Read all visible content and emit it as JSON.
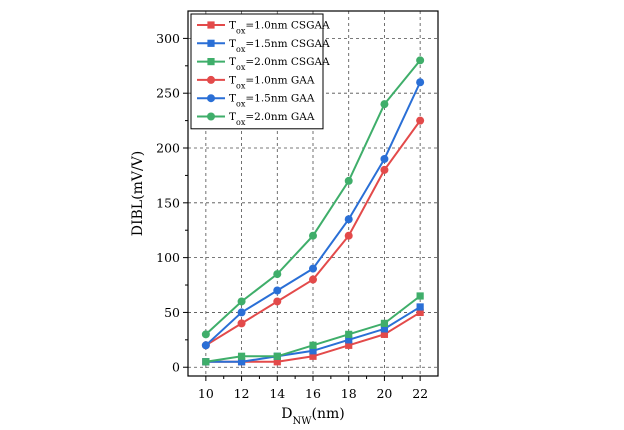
{
  "chart_data": {
    "type": "line",
    "xlabel": "D",
    "xlabel_sub": "NW",
    "xlabel_suffix": "(nm)",
    "ylabel": "DIBL(mV/V)",
    "x": [
      10,
      12,
      14,
      16,
      18,
      20,
      22
    ],
    "xlim": [
      9,
      23
    ],
    "ylim": [
      -8,
      325
    ],
    "x_ticks": [
      "10",
      "12",
      "14",
      "16",
      "18",
      "20",
      "22"
    ],
    "y_ticks": [
      "0",
      "50",
      "100",
      "150",
      "200",
      "250",
      "300"
    ],
    "grid": true,
    "legend_position": "top-left",
    "series": [
      {
        "name": "T_ox=1.0nm CSGAA",
        "legend_prefix": "T",
        "legend_sub": "ox",
        "legend_suffix": "=1.0nm CSGAA",
        "marker": "square",
        "color": "#e34a4a",
        "values": [
          5,
          5,
          5,
          10,
          20,
          30,
          50
        ]
      },
      {
        "name": "T_ox=1.5nm CSGAA",
        "legend_prefix": "T",
        "legend_sub": "ox",
        "legend_suffix": "=1.5nm CSGAA",
        "marker": "square",
        "color": "#2a6fd6",
        "values": [
          5,
          5,
          10,
          15,
          25,
          35,
          55
        ]
      },
      {
        "name": "T_ox=2.0nm CSGAA",
        "legend_prefix": "T",
        "legend_sub": "ox",
        "legend_suffix": "=2.0nm CSGAA",
        "marker": "square",
        "color": "#3fae6a",
        "values": [
          5,
          10,
          10,
          20,
          30,
          40,
          65
        ]
      },
      {
        "name": "T_ox=1.0nm GAA",
        "legend_prefix": "T",
        "legend_sub": "ox",
        "legend_suffix": "=1.0nm GAA",
        "marker": "circle",
        "color": "#e34a4a",
        "values": [
          20,
          40,
          60,
          80,
          120,
          180,
          225
        ]
      },
      {
        "name": "T_ox=1.5nm GAA",
        "legend_prefix": "T",
        "legend_sub": "ox",
        "legend_suffix": "=1.5nm GAA",
        "marker": "circle",
        "color": "#2a6fd6",
        "values": [
          20,
          50,
          70,
          90,
          135,
          190,
          260
        ]
      },
      {
        "name": "T_ox=2.0nm GAA",
        "legend_prefix": "T",
        "legend_sub": "ox",
        "legend_suffix": "=2.0nm GAA",
        "marker": "circle",
        "color": "#3fae6a",
        "values": [
          30,
          60,
          85,
          120,
          170,
          240,
          280
        ]
      }
    ]
  }
}
